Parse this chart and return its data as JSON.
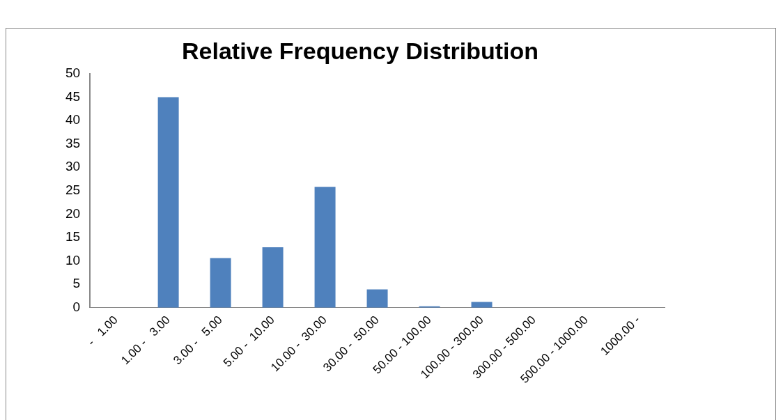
{
  "chart_data": {
    "type": "bar",
    "title": "Relative Frequency Distribution",
    "categories": [
      "-   1.00",
      "1.00 -   3.00",
      "3.00 -   5.00",
      "5.00 -  10.00",
      "10.00 -  30.00",
      "30.00 -  50.00",
      "50.00 - 100.00",
      "100.00 - 300.00",
      "300.00 - 500.00",
      "500.00 - 1000.00",
      "1000.00 -"
    ],
    "values": [
      0,
      45,
      10.6,
      12.9,
      25.8,
      3.9,
      0.3,
      1.2,
      0,
      0,
      0
    ],
    "color": "#4f81bd",
    "ylim": [
      0,
      50
    ],
    "yticks": [
      0,
      5,
      10,
      15,
      20,
      25,
      30,
      35,
      40,
      45,
      50
    ],
    "grid": false,
    "legend": false
  }
}
